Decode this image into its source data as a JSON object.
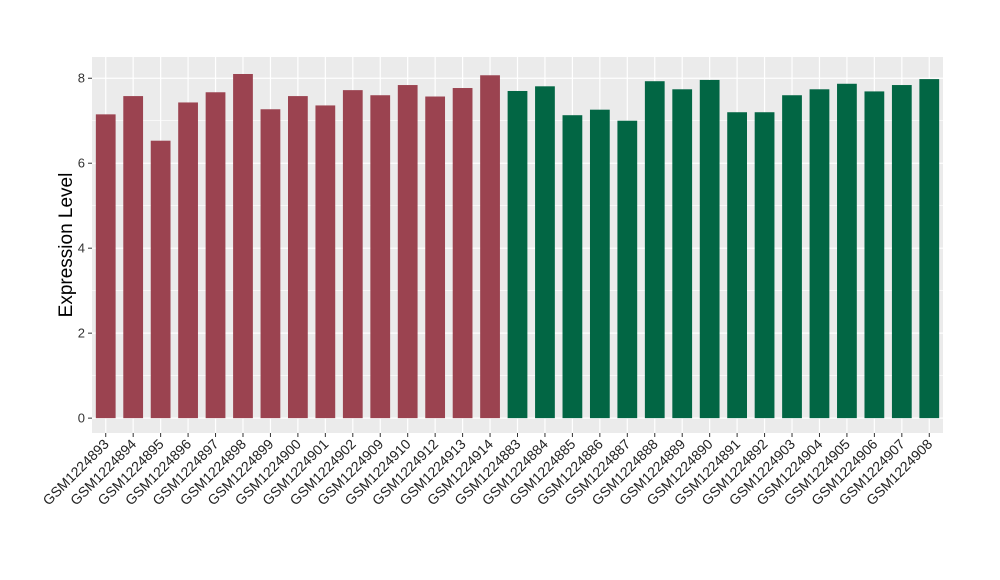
{
  "chart_data": {
    "type": "bar",
    "title": "",
    "xlabel": "",
    "ylabel": "Expression Level",
    "ylim": [
      -0.35,
      8.5
    ],
    "yticks": [
      0,
      2,
      4,
      6,
      8
    ],
    "grid": true,
    "legend": "none",
    "categories": [
      "GSM1224893",
      "GSM1224894",
      "GSM1224895",
      "GSM1224896",
      "GSM1224897",
      "GSM1224898",
      "GSM1224899",
      "GSM1224900",
      "GSM1224901",
      "GSM1224902",
      "GSM1224909",
      "GSM1224910",
      "GSM1224912",
      "GSM1224913",
      "GSM1224914",
      "GSM1224883",
      "GSM1224884",
      "GSM1224885",
      "GSM1224886",
      "GSM1224887",
      "GSM1224888",
      "GSM1224889",
      "GSM1224890",
      "GSM1224891",
      "GSM1224892",
      "GSM1224903",
      "GSM1224904",
      "GSM1224905",
      "GSM1224906",
      "GSM1224907",
      "GSM1224908"
    ],
    "values": [
      7.15,
      7.58,
      6.53,
      7.43,
      7.67,
      8.1,
      7.27,
      7.58,
      7.36,
      7.72,
      7.6,
      7.84,
      7.57,
      7.77,
      8.07,
      7.7,
      7.81,
      7.13,
      7.26,
      7.0,
      7.93,
      7.74,
      7.96,
      7.2,
      7.2,
      7.6,
      7.74,
      7.87,
      7.69,
      7.84,
      7.98
    ],
    "groups": [
      "a",
      "a",
      "a",
      "a",
      "a",
      "a",
      "a",
      "a",
      "a",
      "a",
      "a",
      "a",
      "a",
      "a",
      "a",
      "b",
      "b",
      "b",
      "b",
      "b",
      "b",
      "b",
      "b",
      "b",
      "b",
      "b",
      "b",
      "b",
      "b",
      "b",
      "b"
    ],
    "group_colors": {
      "a": "#9b4350",
      "b": "#026644"
    },
    "panel_background": "#ebebeb",
    "grid_color": "#ffffff"
  }
}
